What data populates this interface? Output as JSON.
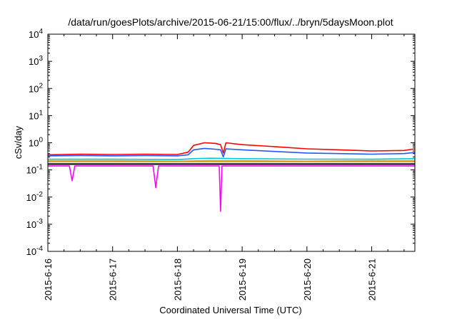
{
  "chart_data": {
    "type": "line",
    "title": "/data/run/goesPlots/archive/2015-06-21/15:00/flux/../bryn/5daysMoon.plot",
    "xlabel": "Coordinated Universal Time (UTC)",
    "ylabel": "cSv/day",
    "yscale": "log",
    "ylim": [
      0.0001,
      10000
    ],
    "xlim_days": [
      "2015-06-16 00:00",
      "2015-06-21 16:00"
    ],
    "x_ticks": [
      "2015-6-16",
      "2015-6-17",
      "2015-6-18",
      "2015-6-19",
      "2015-6-20",
      "2015-6-21"
    ],
    "y_ticks": [
      {
        "base": "10",
        "exp": "4",
        "value": 10000
      },
      {
        "base": "10",
        "exp": "3",
        "value": 1000
      },
      {
        "base": "10",
        "exp": "2",
        "value": 100
      },
      {
        "base": "10",
        "exp": "1",
        "value": 10
      },
      {
        "base": "10",
        "exp": "0",
        "value": 1
      },
      {
        "base": "10",
        "exp": "-1",
        "value": 0.1
      },
      {
        "base": "10",
        "exp": "-2",
        "value": 0.01
      },
      {
        "base": "10",
        "exp": "-3",
        "value": 0.001
      },
      {
        "base": "10",
        "exp": "-4",
        "value": 0.0001
      }
    ],
    "grid": false,
    "legend": "none",
    "series": [
      {
        "color": "#ff0000",
        "x": [
          "2015-06-16 00:00",
          "2015-06-16 12:00",
          "2015-06-17 00:00",
          "2015-06-17 12:00",
          "2015-06-18 00:00",
          "2015-06-18 04:00",
          "2015-06-18 06:00",
          "2015-06-18 10:00",
          "2015-06-18 14:00",
          "2015-06-18 16:00",
          "2015-06-18 17:00",
          "2015-06-18 18:00",
          "2015-06-19 00:00",
          "2015-06-19 12:00",
          "2015-06-20 00:00",
          "2015-06-20 12:00",
          "2015-06-21 00:00",
          "2015-06-21 12:00",
          "2015-06-21 16:00"
        ],
        "y": [
          0.36,
          0.38,
          0.37,
          0.38,
          0.37,
          0.45,
          0.8,
          1.0,
          0.95,
          0.85,
          0.42,
          1.0,
          0.85,
          0.72,
          0.6,
          0.55,
          0.5,
          0.52,
          0.6
        ]
      },
      {
        "color": "#1e5aff",
        "x": [
          "2015-06-16 00:00",
          "2015-06-16 12:00",
          "2015-06-17 00:00",
          "2015-06-17 12:00",
          "2015-06-18 00:00",
          "2015-06-18 04:00",
          "2015-06-18 06:00",
          "2015-06-18 10:00",
          "2015-06-18 14:00",
          "2015-06-18 16:00",
          "2015-06-18 17:00",
          "2015-06-18 18:00",
          "2015-06-19 00:00",
          "2015-06-19 12:00",
          "2015-06-20 00:00",
          "2015-06-20 12:00",
          "2015-06-21 00:00",
          "2015-06-21 12:00",
          "2015-06-21 16:00"
        ],
        "y": [
          0.33,
          0.34,
          0.33,
          0.34,
          0.33,
          0.36,
          0.55,
          0.62,
          0.58,
          0.55,
          0.3,
          0.6,
          0.55,
          0.48,
          0.42,
          0.4,
          0.38,
          0.4,
          0.44
        ]
      },
      {
        "color": "#00c8d8",
        "x": [
          "2015-06-16 00:00",
          "2015-06-17 00:00",
          "2015-06-18 00:00",
          "2015-06-18 06:00",
          "2015-06-18 12:00",
          "2015-06-19 00:00",
          "2015-06-20 00:00",
          "2015-06-21 00:00",
          "2015-06-21 16:00"
        ],
        "y": [
          0.25,
          0.25,
          0.24,
          0.26,
          0.27,
          0.26,
          0.25,
          0.25,
          0.26
        ]
      },
      {
        "color": "#7fd04a",
        "x": [
          "2015-06-16 00:00",
          "2015-06-17 00:00",
          "2015-06-18 00:00",
          "2015-06-18 12:00",
          "2015-06-19 00:00",
          "2015-06-20 00:00",
          "2015-06-21 00:00",
          "2015-06-21 16:00"
        ],
        "y": [
          0.22,
          0.22,
          0.21,
          0.22,
          0.22,
          0.21,
          0.22,
          0.22
        ]
      },
      {
        "color": "#ff8c00",
        "x": [
          "2015-06-16 00:00",
          "2015-06-17 00:00",
          "2015-06-18 00:00",
          "2015-06-18 12:00",
          "2015-06-19 00:00",
          "2015-06-20 00:00",
          "2015-06-21 00:00",
          "2015-06-21 16:00"
        ],
        "y": [
          0.2,
          0.2,
          0.2,
          0.2,
          0.2,
          0.2,
          0.2,
          0.2
        ]
      },
      {
        "color": "#7a2aa0",
        "x": [
          "2015-06-16 00:00",
          "2015-06-17 00:00",
          "2015-06-18 00:00",
          "2015-06-18 12:00",
          "2015-06-19 00:00",
          "2015-06-20 00:00",
          "2015-06-21 00:00",
          "2015-06-21 16:00"
        ],
        "y": [
          0.17,
          0.17,
          0.17,
          0.17,
          0.17,
          0.17,
          0.17,
          0.17
        ]
      },
      {
        "color": "#222222",
        "x": [
          "2015-06-16 00:00",
          "2015-06-17 00:00",
          "2015-06-18 00:00",
          "2015-06-18 12:00",
          "2015-06-19 00:00",
          "2015-06-20 00:00",
          "2015-06-21 00:00",
          "2015-06-21 16:00"
        ],
        "y": [
          0.16,
          0.16,
          0.16,
          0.16,
          0.16,
          0.16,
          0.16,
          0.16
        ]
      },
      {
        "color": "#ff00ff",
        "x": [
          "2015-06-16 00:00",
          "2015-06-16 08:00",
          "2015-06-16 09:00",
          "2015-06-16 10:00",
          "2015-06-17 00:00",
          "2015-06-17 15:00",
          "2015-06-17 16:00",
          "2015-06-17 17:00",
          "2015-06-18 00:00",
          "2015-06-18 14:00",
          "2015-06-18 15:30",
          "2015-06-18 16:00",
          "2015-06-18 16:30",
          "2015-06-18 18:00",
          "2015-06-19 00:00",
          "2015-06-20 00:00",
          "2015-06-21 00:00",
          "2015-06-21 16:00"
        ],
        "y": [
          0.14,
          0.14,
          0.04,
          0.14,
          0.14,
          0.14,
          0.022,
          0.14,
          0.14,
          0.14,
          0.14,
          0.003,
          0.14,
          0.14,
          0.14,
          0.14,
          0.14,
          0.14
        ]
      }
    ]
  }
}
